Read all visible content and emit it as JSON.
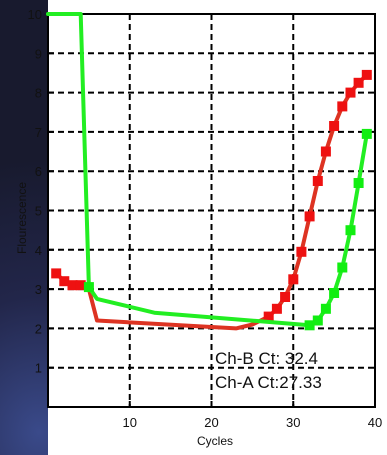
{
  "chart_data": {
    "type": "line",
    "xlabel": "Cycles",
    "ylabel": "Flourescence",
    "xlim": [
      0,
      40
    ],
    "ylim": [
      0,
      10
    ],
    "x_ticks": [
      "10",
      "20",
      "30",
      "40"
    ],
    "y_ticks": [
      "1",
      "2",
      "3",
      "4",
      "5",
      "6",
      "7",
      "8",
      "9",
      "10"
    ],
    "grid": "dashed",
    "annotations": [
      "Ch-B Ct: 32.4",
      "Ch-A Ct:27.33"
    ],
    "series": [
      {
        "color": "#dd3322",
        "marker_color": "#ee1111",
        "x": [
          1,
          2,
          3,
          4,
          5,
          6,
          23,
          25,
          26,
          27,
          28,
          29,
          30,
          31,
          32,
          33,
          34,
          35,
          36,
          37,
          38,
          39
        ],
        "y": [
          3.4,
          3.2,
          3.1,
          3.1,
          3.0,
          2.2,
          2.0,
          2.1,
          2.2,
          2.3,
          2.5,
          2.8,
          3.25,
          3.95,
          4.85,
          5.75,
          6.5,
          7.15,
          7.65,
          8.0,
          8.25,
          8.45
        ],
        "markers_x": [
          1,
          2,
          3,
          4,
          27,
          28,
          29,
          30,
          31,
          32,
          33,
          34,
          35,
          36,
          37,
          38,
          39
        ],
        "markers_y": [
          3.4,
          3.2,
          3.1,
          3.1,
          2.3,
          2.5,
          2.8,
          3.25,
          3.95,
          4.85,
          5.75,
          6.5,
          7.15,
          7.65,
          8.0,
          8.25,
          8.45
        ]
      },
      {
        "color": "#22ee22",
        "marker_color": "#11ee11",
        "x": [
          0,
          4,
          5,
          6,
          13,
          32,
          33,
          34,
          35,
          36,
          37,
          38,
          39
        ],
        "y": [
          10,
          10,
          3.05,
          2.75,
          2.4,
          2.08,
          2.2,
          2.5,
          2.9,
          3.55,
          4.5,
          5.7,
          6.95
        ],
        "markers_x": [
          5,
          32,
          33,
          34,
          35,
          36,
          37,
          38,
          39
        ],
        "markers_y": [
          3.05,
          2.08,
          2.2,
          2.5,
          2.9,
          3.55,
          4.5,
          5.7,
          6.95
        ]
      }
    ]
  }
}
